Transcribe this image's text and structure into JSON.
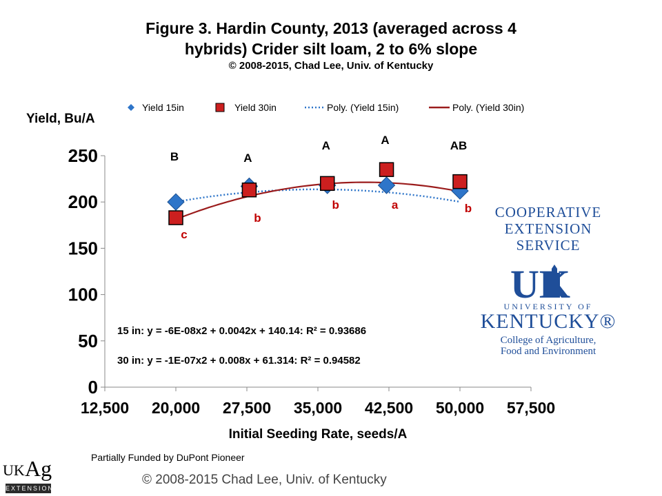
{
  "header": {
    "title_line1": "Figure 3. Hardin County, 2013 (averaged across 4",
    "title_line2": "hybrids) Crider silt loam, 2 to 6% slope",
    "copyright": "© 2008-2015, Chad Lee, Univ. of Kentucky"
  },
  "chart_data": {
    "type": "scatter",
    "ylabel": "Yield, Bu/A",
    "xlabel": "Initial Seeding Rate, seeds/A",
    "xlim": [
      12500,
      57500
    ],
    "ylim": [
      0,
      250
    ],
    "x_ticks": [
      12500,
      20000,
      27500,
      35000,
      42500,
      50000,
      57500
    ],
    "x_tick_labels": [
      "12,500",
      "20,000",
      "27,500",
      "35,000",
      "42,500",
      "50,000",
      "57,500"
    ],
    "y_ticks": [
      0,
      50,
      100,
      150,
      200,
      250
    ],
    "y_tick_labels": [
      "0",
      "50",
      "100",
      "150",
      "200",
      "250"
    ],
    "legend_position": "top",
    "series": [
      {
        "name": "Yield 15in",
        "marker": "diamond",
        "color": "#2e75c9",
        "x": [
          20000,
          27750,
          36000,
          42250,
          50000
        ],
        "y": [
          200,
          217,
          218,
          218,
          212
        ],
        "labels": [
          "B",
          "A",
          "A",
          "A",
          "AB"
        ]
      },
      {
        "name": "Yield 30in",
        "marker": "square",
        "color": "#cc1f1f",
        "x": [
          20000,
          27750,
          36000,
          42250,
          50000
        ],
        "y": [
          183,
          213,
          220,
          235,
          222
        ],
        "labels": [
          "c",
          "b",
          "b",
          "a",
          "b"
        ]
      }
    ],
    "trendlines": [
      {
        "name": "Poly. (Yield 15in)",
        "style": "dotted",
        "color": "#2e75c9",
        "coefficients": [
          140.14,
          0.0042,
          -6e-08
        ]
      },
      {
        "name": "Poly. (Yield 30in)",
        "style": "solid",
        "color": "#9b1c1c",
        "coefficients": [
          61.314,
          0.008,
          -1e-07
        ]
      }
    ],
    "equations": [
      "15 in: y = -6E-08x2 + 0.0042x + 140.14: R² = 0.93686",
      "30 in: y = -1E-07x2 + 0.008x + 61.314: R² = 0.94582"
    ]
  },
  "logo": {
    "coop_line1": "COOPERATIVE",
    "coop_line2": "EXTENSION",
    "coop_line3": "SERVICE",
    "uk_mark": "UK",
    "university_of": "UNIVERSITY OF",
    "kentucky": "KENTUCKY®",
    "college_line1": "College of Agriculture,",
    "college_line2": "Food and Environment"
  },
  "footer": {
    "funded": "Partially Funded by DuPont Pioneer",
    "copyright": "© 2008-2015 Chad Lee, Univ. of Kentucky",
    "ukag_uk": "UK",
    "ukag_ag": "Ag",
    "ukag_extension": "EXTENSION"
  }
}
